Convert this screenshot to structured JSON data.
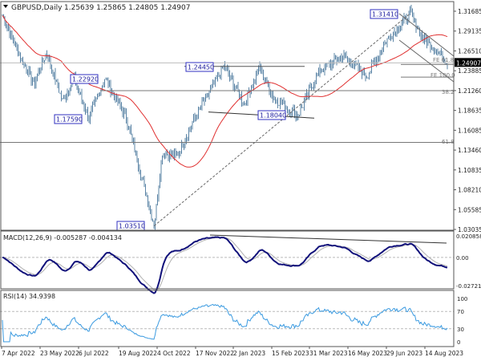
{
  "header": {
    "symbol": "GBPUSD,Daily",
    "ohlc": "1.25639 1.25865 1.24805 1.24907"
  },
  "chart_data": [
    {
      "type": "candlestick",
      "title": "GBPUSD,Daily",
      "current_price": "1.24907",
      "y_ticks": [
        "1.31685",
        "1.29135",
        "1.26510",
        "1.23885",
        "1.21260",
        "1.18635",
        "1.16085",
        "1.13460",
        "1.10835",
        "1.08210",
        "1.05585",
        "1.03035"
      ],
      "ylim": [
        1.03035,
        1.31685
      ],
      "x_ticks": [
        "7 Apr 2022",
        "23 May 2022",
        "6 Jul 2022",
        "19 Aug 2022",
        "4 Oct 2022",
        "17 Nov 2022",
        "2 Jan 2023",
        "15 Feb 2023",
        "31 Mar 2023",
        "16 May 2023",
        "29 Jun 2023",
        "14 Aug 2023"
      ],
      "price_path": [
        [
          "2022-04-07",
          1.311
        ],
        [
          "2022-04-28",
          1.255
        ],
        [
          "2022-05-13",
          1.222
        ],
        [
          "2022-05-27",
          1.262
        ],
        [
          "2022-06-14",
          1.199
        ],
        [
          "2022-06-27",
          1.229
        ],
        [
          "2022-07-14",
          1.176
        ],
        [
          "2022-08-01",
          1.229
        ],
        [
          "2022-08-26",
          1.175
        ],
        [
          "2022-09-26",
          1.0351
        ],
        [
          "2022-10-05",
          1.132
        ],
        [
          "2022-10-21",
          1.125
        ],
        [
          "2022-11-10",
          1.175
        ],
        [
          "2022-12-14",
          1.2445
        ],
        [
          "2023-01-06",
          1.195
        ],
        [
          "2023-01-23",
          1.243
        ],
        [
          "2023-02-08",
          1.203
        ],
        [
          "2023-03-08",
          1.1804
        ],
        [
          "2023-03-31",
          1.237
        ],
        [
          "2023-04-28",
          1.259
        ],
        [
          "2023-05-25",
          1.232
        ],
        [
          "2023-06-16",
          1.279
        ],
        [
          "2023-07-13",
          1.3141
        ],
        [
          "2023-07-27",
          1.282
        ],
        [
          "2023-08-11",
          1.266
        ],
        [
          "2023-08-24",
          1.249
        ]
      ],
      "moving_average": "red",
      "annotations": {
        "swing_labels": [
          "1.31410",
          "1.24450",
          "1.22920",
          "1.17590",
          "1.18040",
          "1.03510"
        ],
        "fib_labels": [
          "FE 61.8",
          "FE 100.0",
          "38.2",
          "61.8"
        ],
        "levels": [
          1.2445,
          1.2126,
          1.1446,
          1.247,
          1.2303
        ]
      },
      "colors": {
        "bars": "#5b84a6",
        "ma": "#e03030",
        "label_border": "#3030c0"
      }
    },
    {
      "type": "line",
      "title": "MACD(12,26,9) -0.005287 -0.004134",
      "y_ticks": [
        "0.020858",
        "0.00",
        "-0.027213"
      ],
      "ylim": [
        -0.027213,
        0.020858
      ],
      "colors": {
        "macd": "#10107a",
        "signal": "#b0b0b0"
      }
    },
    {
      "type": "line",
      "title": "RSI(14) 34.9398",
      "y_ticks": [
        "100",
        "70",
        "30",
        "0"
      ],
      "ylim": [
        0,
        100
      ],
      "levels": [
        30,
        70
      ],
      "colors": {
        "rsi": "#3a9ae0"
      }
    }
  ]
}
